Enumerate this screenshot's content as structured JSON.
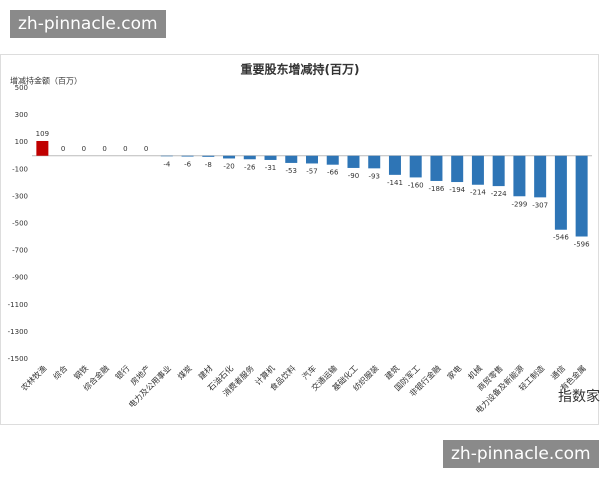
{
  "chart_data": {
    "type": "bar",
    "title": "重要股东增减持(百万)",
    "ylabel": "增减持金额（百万）",
    "categories": [
      "农林牧渔",
      "综合",
      "钢铁",
      "综合金融",
      "银行",
      "房地产",
      "电力及公用事业",
      "煤炭",
      "建材",
      "石油石化",
      "消费者服务",
      "计算机",
      "食品饮料",
      "汽车",
      "交通运输",
      "基础化工",
      "纺织服装",
      "建筑",
      "国防军工",
      "非银行金融",
      "家电",
      "机械",
      "商贸零售",
      "电力设备及新能源",
      "轻工制造",
      "通信",
      "有色金属"
    ],
    "values": [
      109,
      0,
      0,
      0,
      0,
      0,
      -4,
      -6,
      -8,
      -20,
      -26,
      -31,
      -53,
      -57,
      -66,
      -90,
      -93,
      -141,
      -160,
      -186,
      -194,
      -214,
      -224,
      -299,
      -307,
      -546,
      -596
    ],
    "colors": [
      "#c00000",
      "#2e75b6",
      "#2e75b6",
      "#2e75b6",
      "#2e75b6",
      "#2e75b6",
      "#2e75b6",
      "#2e75b6",
      "#2e75b6",
      "#2e75b6",
      "#2e75b6",
      "#2e75b6",
      "#2e75b6",
      "#2e75b6",
      "#2e75b6",
      "#2e75b6",
      "#2e75b6",
      "#2e75b6",
      "#2e75b6",
      "#2e75b6",
      "#2e75b6",
      "#2e75b6",
      "#2e75b6",
      "#2e75b6",
      "#2e75b6",
      "#2e75b6",
      "#2e75b6"
    ],
    "ylim": [
      -1500,
      500
    ],
    "yticks": [
      500,
      300,
      100,
      -100,
      -300,
      -500,
      -700,
      -900,
      -1100,
      -1300,
      -1500
    ],
    "grid": false
  },
  "watermark": {
    "site": "zh-pinnacle.com",
    "logo": "指数家"
  }
}
